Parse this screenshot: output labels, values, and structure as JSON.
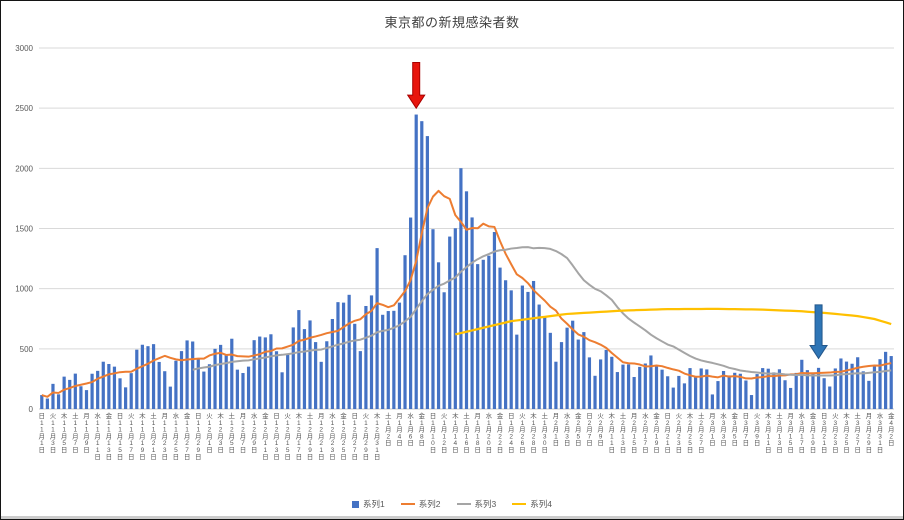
{
  "window": {
    "background": "#FFFFFF",
    "border_color": "#141414",
    "bottom_strip_color": "#CCCCCC"
  },
  "chart": {
    "title": "東京都の新規感染者数",
    "colors": {
      "grid": "#D9D9D9",
      "axis_line": "#C9C9C9",
      "axis_text": "#595959",
      "title_text": "#404040"
    }
  },
  "chart_data": {
    "type": "combo",
    "title": "東京都の新規感染者数",
    "ylim": [
      0,
      3000
    ],
    "yticks": [
      0,
      500,
      1000,
      1500,
      2000,
      2500,
      3000
    ],
    "grid": true,
    "legend_position": "bottom",
    "x_axis": {
      "unit": "day",
      "tick_every_days": 2,
      "weekday_cycle": [
        "日",
        "月",
        "火",
        "水",
        "木",
        "金",
        "土"
      ],
      "first_day_weekday": "日",
      "month_suffix": "月",
      "day_suffix": "日",
      "months": [
        {
          "label": "11",
          "days": 30
        },
        {
          "label": "12",
          "days": 31
        },
        {
          "label": "1",
          "days": 31
        },
        {
          "label": "2",
          "days": 28
        },
        {
          "label": "3",
          "days": 31
        },
        {
          "label": "4",
          "days": 2
        }
      ]
    },
    "series": [
      {
        "name": "系列1",
        "type": "bar",
        "color": "#4472C4",
        "values": [
          116,
          87,
          209,
          122,
          269,
          242,
          294,
          189,
          157,
          293,
          317,
          393,
          374,
          352,
          255,
          180,
          298,
          493,
          534,
          522,
          539,
          391,
          314,
          186,
          401,
          481,
          570,
          561,
          418,
          311,
          372,
          500,
          533,
          449,
          584,
          327,
          299,
          352,
          572,
          602,
          595,
          621,
          480,
          305,
          460,
          678,
          822,
          664,
          736,
          556,
          392,
          563,
          748,
          888,
          884,
          949,
          708,
          481,
          856,
          944,
          1337,
          783,
          814,
          816,
          884,
          1278,
          1591,
          2447,
          2392,
          2268,
          1494,
          1219,
          970,
          1433,
          1502,
          2001,
          1809,
          1592,
          1204,
          1240,
          1274,
          1471,
          1175,
          1070,
          986,
          618,
          1026,
          973,
          1064,
          868,
          769,
          633,
          393,
          556,
          676,
          734,
          577,
          639,
          429,
          276,
          412,
          491,
          434,
          307,
          369,
          371,
          266,
          350,
          378,
          445,
          353,
          327,
          272,
          178,
          275,
          213,
          340,
          270,
          337,
          329,
          121,
          232,
          316,
          279,
          301,
          293,
          237,
          116,
          290,
          340,
          335,
          304,
          330,
          239,
          175,
          300,
          409,
          323,
          303,
          342,
          256,
          187,
          337,
          420,
          394,
          376,
          430,
          313,
          234,
          364,
          414,
          475,
          440
        ]
      },
      {
        "name": "系列2",
        "type": "line",
        "color": "#ED7D31",
        "derivation": "ma",
        "window": 7,
        "full_window_only": false
      },
      {
        "name": "系列3",
        "type": "line",
        "color": "#A5A5A5",
        "derivation": "ma",
        "window": 28,
        "full_window_only": true
      },
      {
        "name": "系列4",
        "type": "line",
        "color": "#FFC000",
        "derivation": "points",
        "points_day_value": [
          [
            75,
            620
          ],
          [
            85,
            730
          ],
          [
            95,
            790
          ],
          [
            105,
            818
          ],
          [
            113,
            830
          ],
          [
            122,
            832
          ],
          [
            130,
            826
          ],
          [
            137,
            812
          ],
          [
            142,
            795
          ],
          [
            147,
            772
          ],
          [
            150,
            748
          ],
          [
            153,
            706
          ]
        ]
      }
    ],
    "annotations": [
      {
        "id": "red-arrow",
        "shape": "down-arrow",
        "day": 68,
        "tip_value": 2500,
        "top_value": 2880,
        "fill": "#E8150D",
        "stroke": "#A80000"
      },
      {
        "id": "blue-arrow",
        "shape": "down-arrow",
        "day": 140,
        "tip_value": 420,
        "top_value": 865,
        "fill": "#2E75B6",
        "stroke": "#24578B"
      }
    ]
  }
}
